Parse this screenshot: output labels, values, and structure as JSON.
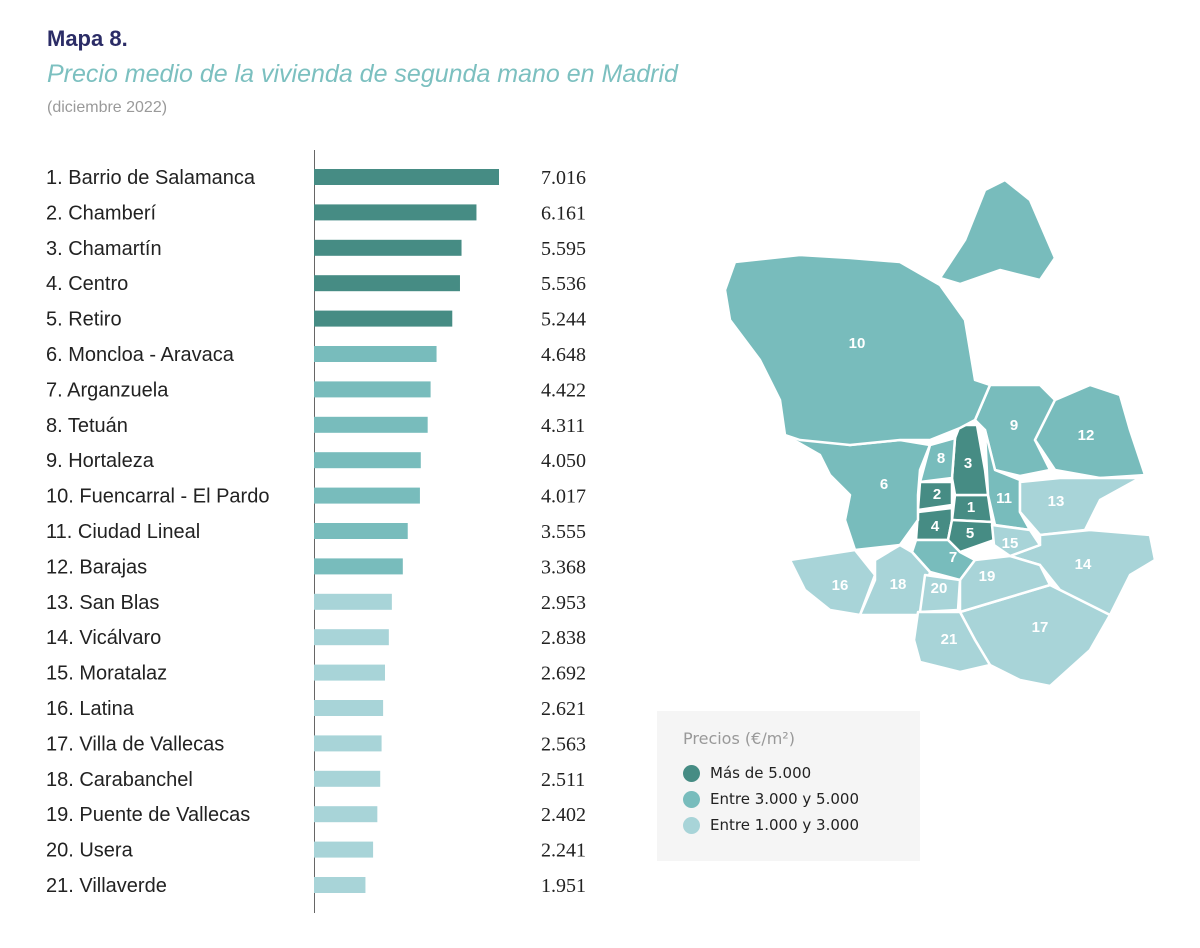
{
  "header": {
    "label": "Mapa 8.",
    "title": "Precio medio de la vivienda de segunda mano en Madrid",
    "subtitle": "(diciembre 2022)"
  },
  "colors": {
    "high": "#468c84",
    "mid": "#78bcbc",
    "low": "#a8d4d8",
    "title": "#2b2c66",
    "subtitle": "#7cc0c0"
  },
  "chart_data": {
    "type": "bar",
    "orientation": "horizontal",
    "title": "Precio medio de la vivienda de segunda mano en Madrid",
    "subtitle": "(diciembre 2022)",
    "unit": "€/m²",
    "xlim": [
      0,
      7016
    ],
    "categories": [
      "1. Barrio de Salamanca",
      "2. Chamberí",
      "3. Chamartín",
      "4. Centro",
      "5. Retiro",
      "6. Moncloa - Aravaca",
      "7. Arganzuela",
      "8. Tetuán",
      "9. Hortaleza",
      "10. Fuencarral - El Pardo",
      "11. Ciudad Lineal",
      "12. Barajas",
      "13. San Blas",
      "14. Vicálvaro",
      "15. Moratalaz",
      "16. Latina",
      "17. Villa de Vallecas",
      "18. Carabanchel",
      "19. Puente de Vallecas",
      "20. Usera",
      "21. Villaverde"
    ],
    "values": [
      7016,
      6161,
      5595,
      5536,
      5244,
      4648,
      4422,
      4311,
      4050,
      4017,
      3555,
      3368,
      2953,
      2838,
      2692,
      2621,
      2563,
      2511,
      2402,
      2241,
      1951
    ],
    "value_labels": [
      "7.016",
      "6.161",
      "5.595",
      "5.536",
      "5.244",
      "4.648",
      "4.422",
      "4.311",
      "4.050",
      "4.017",
      "3.555",
      "3.368",
      "2.953",
      "2.838",
      "2.692",
      "2.621",
      "2.563",
      "2.511",
      "2.402",
      "2.241",
      "1.951"
    ],
    "tiers": [
      "high",
      "high",
      "high",
      "high",
      "high",
      "mid",
      "mid",
      "mid",
      "mid",
      "mid",
      "mid",
      "mid",
      "low",
      "low",
      "low",
      "low",
      "low",
      "low",
      "low",
      "low",
      "low"
    ]
  },
  "map": {
    "district_labels": [
      "1",
      "2",
      "3",
      "4",
      "5",
      "6",
      "7",
      "8",
      "9",
      "10",
      "11",
      "12",
      "13",
      "14",
      "15",
      "16",
      "17",
      "18",
      "19",
      "20",
      "21"
    ]
  },
  "legend": {
    "title": "Precios (€/m²)",
    "items": [
      {
        "label": "Más de 5.000",
        "tier": "high"
      },
      {
        "label": "Entre 3.000 y 5.000",
        "tier": "mid"
      },
      {
        "label": "Entre 1.000 y 3.000",
        "tier": "low"
      }
    ]
  }
}
